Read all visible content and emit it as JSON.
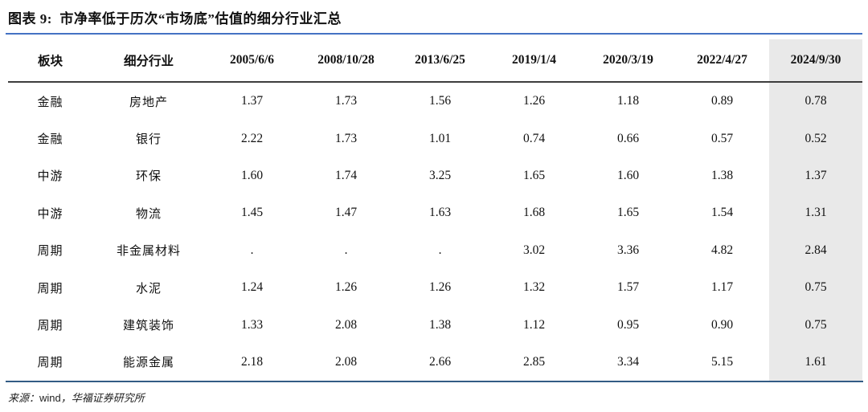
{
  "title": "图表 9:  市净率低于历次“市场底”估值的细分行业汇总",
  "colors": {
    "title_rule_blue": "#4472C4",
    "header_rule_dark": "#3d3d3d",
    "bottom_rule_navy": "#335C85",
    "highlight_column_gray": "#E9E9E9",
    "background": "#ffffff",
    "text": "#111111"
  },
  "footer": {
    "prefix": "来源：",
    "vendor": "wind",
    "suffix": "，华福证券研究所"
  },
  "table": {
    "columns": [
      "板块",
      "细分行业",
      "2005/6/6",
      "2008/10/28",
      "2013/6/25",
      "2019/1/4",
      "2020/3/19",
      "2022/4/27",
      "2024/9/30"
    ],
    "highlight_column_index": 8,
    "rows": [
      [
        "金融",
        "房地产",
        "1.37",
        "1.73",
        "1.56",
        "1.26",
        "1.18",
        "0.89",
        "0.78"
      ],
      [
        "金融",
        "银行",
        "2.22",
        "1.73",
        "1.01",
        "0.74",
        "0.66",
        "0.57",
        "0.52"
      ],
      [
        "中游",
        "环保",
        "1.60",
        "1.74",
        "3.25",
        "1.65",
        "1.60",
        "1.38",
        "1.37"
      ],
      [
        "中游",
        "物流",
        "1.45",
        "1.47",
        "1.63",
        "1.68",
        "1.65",
        "1.54",
        "1.31"
      ],
      [
        "周期",
        "非金属材料",
        ".",
        ".",
        ".",
        "3.02",
        "3.36",
        "4.82",
        "2.84"
      ],
      [
        "周期",
        "水泥",
        "1.24",
        "1.26",
        "1.26",
        "1.32",
        "1.57",
        "1.17",
        "0.75"
      ],
      [
        "周期",
        "建筑装饰",
        "1.33",
        "2.08",
        "1.38",
        "1.12",
        "0.95",
        "0.90",
        "0.75"
      ],
      [
        "周期",
        "能源金属",
        "2.18",
        "2.08",
        "2.66",
        "2.85",
        "3.34",
        "5.15",
        "1.61"
      ]
    ]
  },
  "chart_data": {
    "type": "table",
    "title": "图表 9: 市净率低于历次“市场底”估值的细分行业汇总",
    "columns": [
      "板块",
      "细分行业",
      "2005/6/6",
      "2008/10/28",
      "2013/6/25",
      "2019/1/4",
      "2020/3/19",
      "2022/4/27",
      "2024/9/30"
    ],
    "series": [
      {
        "sector": "金融",
        "industry": "房地产",
        "values": [
          1.37,
          1.73,
          1.56,
          1.26,
          1.18,
          0.89,
          0.78
        ]
      },
      {
        "sector": "金融",
        "industry": "银行",
        "values": [
          2.22,
          1.73,
          1.01,
          0.74,
          0.66,
          0.57,
          0.52
        ]
      },
      {
        "sector": "中游",
        "industry": "环保",
        "values": [
          1.6,
          1.74,
          3.25,
          1.65,
          1.6,
          1.38,
          1.37
        ]
      },
      {
        "sector": "中游",
        "industry": "物流",
        "values": [
          1.45,
          1.47,
          1.63,
          1.68,
          1.65,
          1.54,
          1.31
        ]
      },
      {
        "sector": "周期",
        "industry": "非金属材料",
        "values": [
          null,
          null,
          null,
          3.02,
          3.36,
          4.82,
          2.84
        ]
      },
      {
        "sector": "周期",
        "industry": "水泥",
        "values": [
          1.24,
          1.26,
          1.26,
          1.32,
          1.57,
          1.17,
          0.75
        ]
      },
      {
        "sector": "周期",
        "industry": "建筑装饰",
        "values": [
          1.33,
          2.08,
          1.38,
          1.12,
          0.95,
          0.9,
          0.75
        ]
      },
      {
        "sector": "周期",
        "industry": "能源金属",
        "values": [
          2.18,
          2.08,
          2.66,
          2.85,
          3.34,
          5.15,
          1.61
        ]
      }
    ],
    "notes": "最后一列 2024/9/30 为灰色高亮列；非金属材料前三期无数据(显示为点)。",
    "source": "来源：wind，华福证券研究所"
  }
}
